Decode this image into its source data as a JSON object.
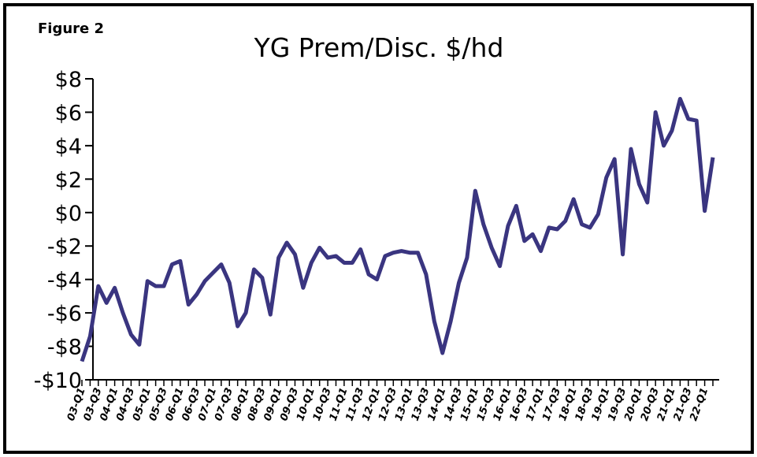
{
  "figure_label": "Figure 2",
  "chart_data": {
    "type": "line",
    "title": "YG Prem/Disc. $/hd",
    "categories": [
      "03-Q1",
      null,
      "03-Q3",
      null,
      "04-Q1",
      null,
      "04-Q3",
      null,
      "05-Q1",
      null,
      "05-Q3",
      null,
      "06-Q1",
      null,
      "06-Q3",
      null,
      "07-Q1",
      null,
      "07-Q3",
      null,
      "08-Q1",
      null,
      "08-Q3",
      null,
      "09-Q1",
      null,
      "09-Q3",
      null,
      "10-Q1",
      null,
      "10-Q3",
      null,
      "11-Q1",
      null,
      "11-Q3",
      null,
      "12-Q1",
      null,
      "12-Q3",
      null,
      "13-Q1",
      null,
      "13-Q3",
      null,
      "14-Q1",
      null,
      "14-Q3",
      null,
      "15-Q1",
      null,
      "15-Q3",
      null,
      "16-Q1",
      null,
      "16-Q3",
      null,
      "17-Q1",
      null,
      "17-Q3",
      null,
      "18-Q1",
      null,
      "18-Q3",
      null,
      "19-Q1",
      null,
      "19-Q3",
      null,
      "20-Q1",
      null,
      "20-Q3",
      null,
      "21-Q1",
      null,
      "21-Q3",
      null,
      "22-Q1",
      null
    ],
    "series": [
      {
        "name": "YG Prem/Disc.",
        "color": "#3a3580",
        "values": [
          -8.9,
          -7.4,
          -4.4,
          -5.4,
          -4.5,
          -6.0,
          -7.3,
          -7.9,
          -4.1,
          -4.4,
          -4.4,
          -3.1,
          -2.9,
          -5.5,
          -4.9,
          -4.1,
          -3.6,
          -3.1,
          -4.2,
          -6.8,
          -6.0,
          -3.4,
          -3.9,
          -6.1,
          -2.7,
          -1.8,
          -2.5,
          -4.5,
          -3.0,
          -2.1,
          -2.7,
          -2.6,
          -3.0,
          -3.0,
          -2.2,
          -3.7,
          -4.0,
          -2.6,
          -2.4,
          -2.3,
          -2.4,
          -2.4,
          -3.7,
          -6.5,
          -8.4,
          -6.5,
          -4.2,
          -2.7,
          1.3,
          -0.7,
          -2.1,
          -3.2,
          -0.8,
          0.4,
          -1.7,
          -1.3,
          -2.3,
          -0.9,
          -1.0,
          -0.5,
          0.8,
          -0.7,
          -0.9,
          -0.1,
          2.1,
          3.2,
          -2.5,
          3.8,
          1.7,
          0.6,
          6.0,
          4.0,
          4.9,
          6.8,
          5.6,
          5.5,
          0.1,
          3.3
        ]
      }
    ],
    "ylim": [
      -10,
      8
    ],
    "yticks": [
      {
        "value": -10,
        "label": "-$10"
      },
      {
        "value": -8,
        "label": "-$8"
      },
      {
        "value": -6,
        "label": "-$6"
      },
      {
        "value": -4,
        "label": "-$4"
      },
      {
        "value": -2,
        "label": "-$2"
      },
      {
        "value": 0,
        "label": "$0"
      },
      {
        "value": 2,
        "label": "$2"
      },
      {
        "value": 4,
        "label": "$4"
      },
      {
        "value": 6,
        "label": "$6"
      },
      {
        "value": 8,
        "label": "$8"
      }
    ],
    "grid": false
  }
}
